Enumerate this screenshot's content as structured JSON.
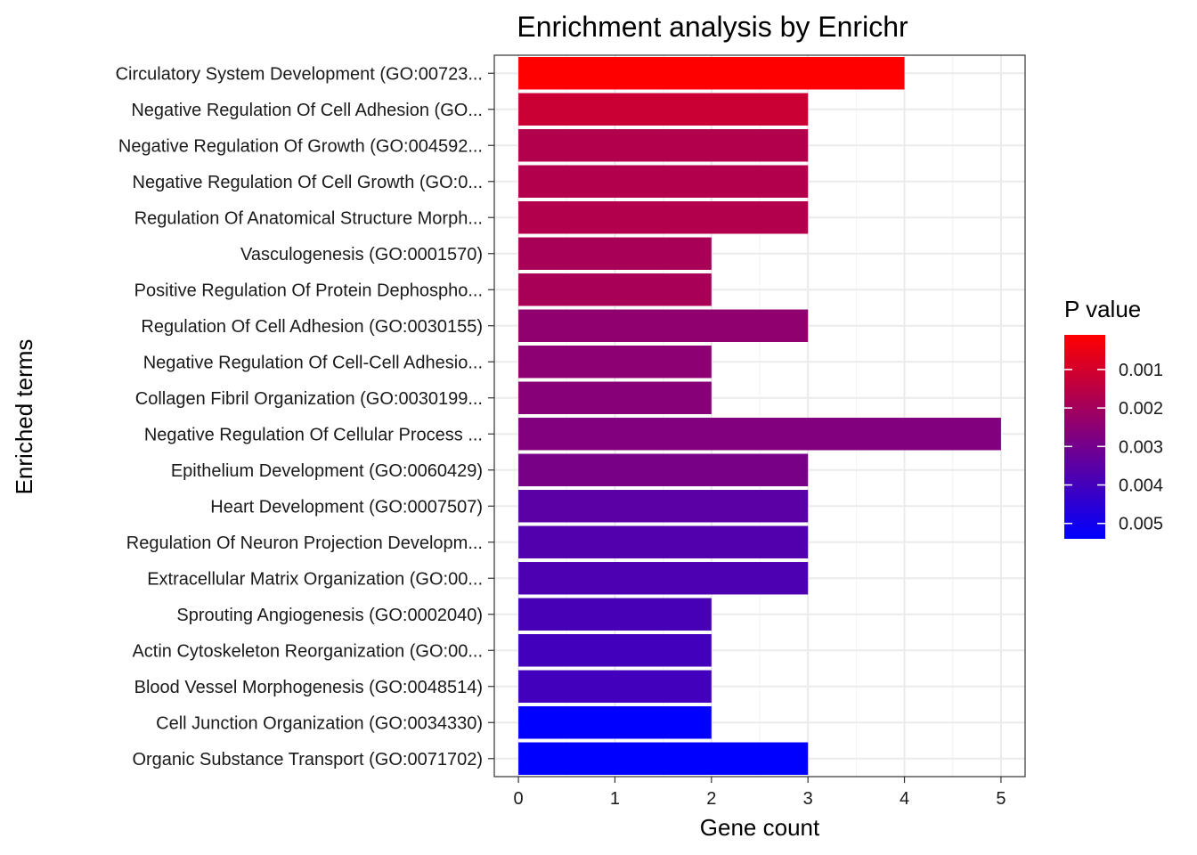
{
  "chart_data": {
    "type": "bar",
    "orientation": "horizontal",
    "title": "Enrichment analysis by Enrichr",
    "xlabel": "Gene count",
    "ylabel": "Enriched terms",
    "xlim": [
      -0.25,
      5.25
    ],
    "xticks": [
      0,
      1,
      2,
      3,
      4,
      5
    ],
    "grid": true,
    "legend_position": "right",
    "legend": {
      "title": "P value",
      "ticks": [
        {
          "value": 0.001,
          "label": "0.001"
        },
        {
          "value": 0.002,
          "label": "0.002"
        },
        {
          "value": 0.003,
          "label": "0.003"
        },
        {
          "value": 0.004,
          "label": "0.004"
        },
        {
          "value": 0.005,
          "label": "0.005"
        }
      ],
      "range": [
        0.0001,
        0.0054
      ],
      "low_color": "#ff0000",
      "high_color": "#0000ff"
    },
    "categories": [
      "Circulatory System Development (GO:00723...",
      "Negative Regulation Of Cell Adhesion (GO...",
      "Negative Regulation Of Growth (GO:004592...",
      "Negative Regulation Of Cell Growth (GO:0...",
      "Regulation Of Anatomical Structure Morph...",
      "Vasculogenesis (GO:0001570)",
      "Positive Regulation Of Protein Dephospho...",
      "Regulation Of Cell Adhesion (GO:0030155)",
      "Negative Regulation Of Cell-Cell Adhesio...",
      "Collagen Fibril Organization (GO:0030199...",
      "Negative Regulation Of Cellular Process ...",
      "Epithelium Development (GO:0060429)",
      "Heart Development (GO:0007507)",
      "Regulation Of Neuron Projection Developm...",
      "Extracellular Matrix Organization (GO:00...",
      "Sprouting Angiogenesis (GO:0002040)",
      "Actin Cytoskeleton Reorganization (GO:00...",
      "Blood Vessel Morphogenesis (GO:0048514)",
      "Cell Junction Organization (GO:0034330)",
      "Organic Substance Transport (GO:0071702)"
    ],
    "values": [
      4,
      3,
      3,
      3,
      3,
      2,
      2,
      3,
      2,
      2,
      5,
      3,
      3,
      3,
      3,
      2,
      2,
      2,
      2,
      3
    ],
    "pvalues": [
      0.0001,
      0.0012,
      0.0017,
      0.0017,
      0.0017,
      0.0019,
      0.0019,
      0.0024,
      0.0025,
      0.0026,
      0.0027,
      0.0029,
      0.0035,
      0.0037,
      0.0038,
      0.0039,
      0.004,
      0.004,
      0.0054,
      0.0054
    ]
  }
}
